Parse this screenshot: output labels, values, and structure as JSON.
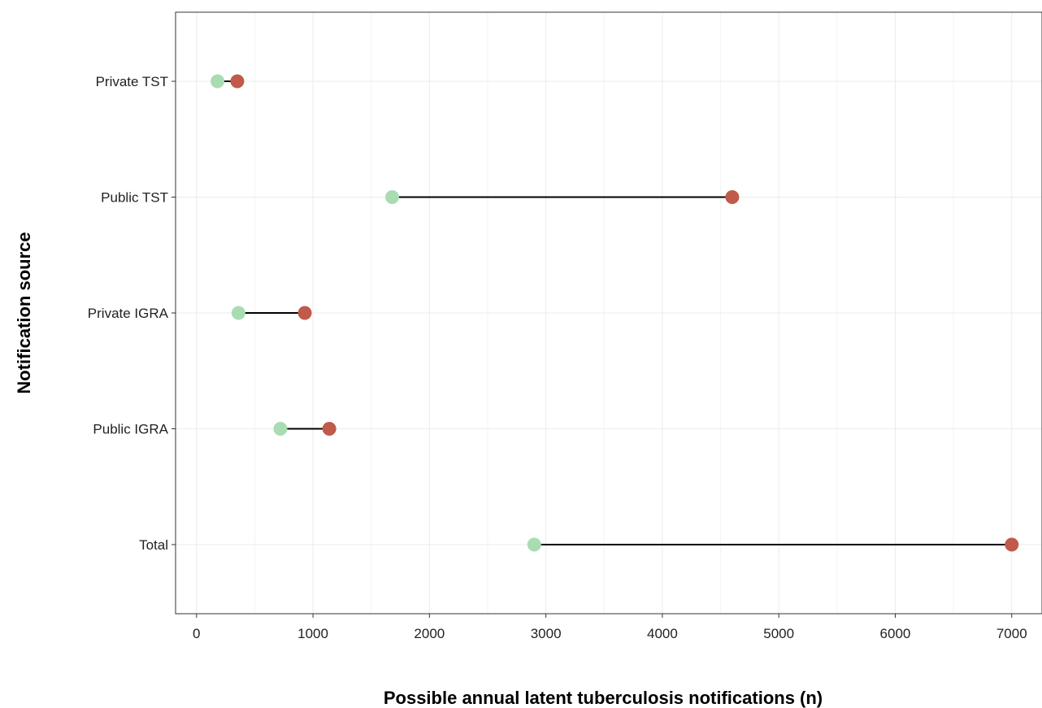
{
  "chart_data": {
    "type": "dumbbell",
    "xlabel": "Possible annual latent tuberculosis notifications (n)",
    "ylabel": "Notification source",
    "xlim": [
      -180,
      7260
    ],
    "x_ticks": [
      0,
      1000,
      2000,
      3000,
      4000,
      5000,
      6000,
      7000
    ],
    "x_tick_labels": [
      "0",
      "1000",
      "2000",
      "3000",
      "4000",
      "5000",
      "6000",
      "7000"
    ],
    "grid": true,
    "categories": [
      "Private TST",
      "Public TST",
      "Private IGRA",
      "Public IGRA",
      "Total"
    ],
    "series": [
      {
        "values": [
          180,
          1680,
          360,
          720,
          2900
        ]
      },
      {
        "values": [
          350,
          4600,
          930,
          1140,
          7000
        ]
      }
    ],
    "colors": {
      "low": "#a9dcb2",
      "high": "#c05a4a",
      "segment": "#000000"
    }
  }
}
